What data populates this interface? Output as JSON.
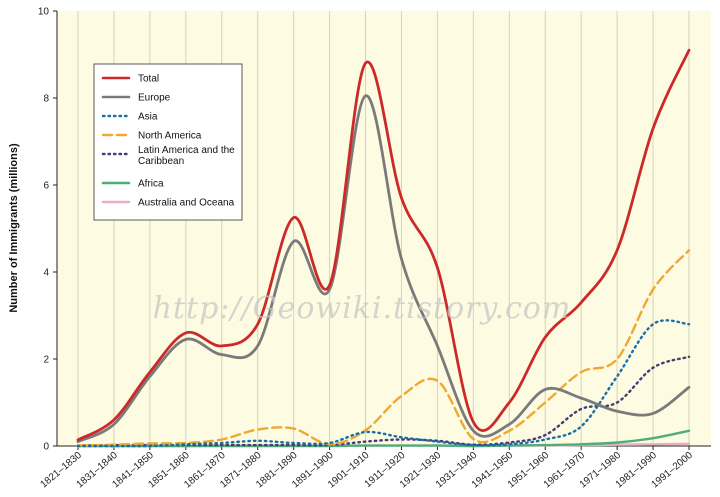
{
  "chart_data": {
    "type": "line",
    "title": "",
    "xlabel": "",
    "ylabel": "Number of Immigrants (millions)",
    "ylim": [
      0,
      10
    ],
    "yticks": [
      0,
      2,
      4,
      6,
      8,
      10
    ],
    "grid": "vertical lines at each decade",
    "legend_position": "top-left",
    "background_color": "#fdfbe1",
    "categories": [
      "1821–1830",
      "1831–1840",
      "1841–1850",
      "1851–1860",
      "1861–1870",
      "1871–1880",
      "1881–1890",
      "1891–1900",
      "1901–1910",
      "1911–1920",
      "1921–1930",
      "1931–1940",
      "1941–1950",
      "1951–1960",
      "1961–1970",
      "1971–1980",
      "1981–1990",
      "1991–2000"
    ],
    "series": [
      {
        "name": "Total",
        "color": "#cc2a2a",
        "style": "solid",
        "values": [
          0.14,
          0.6,
          1.7,
          2.6,
          2.3,
          2.8,
          5.25,
          3.7,
          8.8,
          5.7,
          4.1,
          0.55,
          1.0,
          2.5,
          3.3,
          4.5,
          7.3,
          9.1
        ]
      },
      {
        "name": "Europe",
        "color": "#7a7a7a",
        "style": "solid",
        "values": [
          0.1,
          0.5,
          1.6,
          2.45,
          2.1,
          2.3,
          4.7,
          3.6,
          8.05,
          4.3,
          2.3,
          0.35,
          0.5,
          1.3,
          1.1,
          0.8,
          0.75,
          1.35
        ]
      },
      {
        "name": "Asia",
        "color": "#1a6fa8",
        "style": "dotted",
        "values": [
          0,
          0,
          0,
          0.04,
          0.07,
          0.12,
          0.07,
          0.07,
          0.32,
          0.2,
          0.1,
          0.02,
          0.04,
          0.15,
          0.45,
          1.6,
          2.8,
          2.8
        ]
      },
      {
        "name": "North America",
        "color": "#f0a830",
        "style": "dashed",
        "values": [
          0.01,
          0.03,
          0.06,
          0.07,
          0.15,
          0.38,
          0.4,
          0.04,
          0.36,
          1.15,
          1.5,
          0.16,
          0.35,
          1.0,
          1.7,
          2.0,
          3.6,
          4.5
        ]
      },
      {
        "name": "Latin America and the Caribbean",
        "color": "#4a3a78",
        "style": "dotted",
        "values": [
          0.01,
          0.02,
          0.02,
          0.02,
          0.02,
          0.02,
          0.02,
          0.02,
          0.1,
          0.15,
          0.12,
          0.03,
          0.08,
          0.25,
          0.85,
          1.0,
          1.8,
          2.05
        ]
      },
      {
        "name": "Africa",
        "color": "#4fae78",
        "style": "solid",
        "values": [
          0,
          0,
          0,
          0,
          0,
          0,
          0,
          0,
          0.01,
          0.01,
          0.01,
          0,
          0.01,
          0.02,
          0.04,
          0.08,
          0.18,
          0.35
        ]
      },
      {
        "name": "Australia and Oceana",
        "color": "#e8b0c4",
        "style": "solid",
        "values": [
          0,
          0,
          0,
          0,
          0.01,
          0.01,
          0.01,
          0.01,
          0.01,
          0.01,
          0.01,
          0,
          0.01,
          0.01,
          0.02,
          0.03,
          0.04,
          0.05
        ]
      }
    ]
  },
  "watermark": "http://Geowiki.tistory.com"
}
